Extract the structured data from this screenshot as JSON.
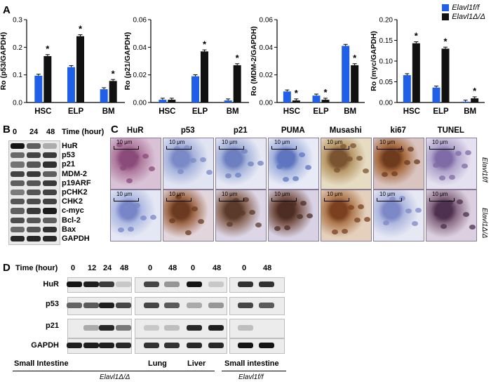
{
  "panels": {
    "A": "A",
    "B": "B",
    "C": "C",
    "D": "D"
  },
  "legend": {
    "items": [
      {
        "label": "Elavl1f/f",
        "color": "#2060e8"
      },
      {
        "label": "Elavl1Δ/Δ",
        "color": "#111111"
      }
    ]
  },
  "chart_data": [
    {
      "type": "bar",
      "ylabel": "Ro (p53/GAPDH)",
      "ylim": [
        0,
        0.3
      ],
      "yticks": [
        "0.0",
        "0.1",
        "0.2",
        "0.3"
      ],
      "categories": [
        "HSC",
        "ELP",
        "BM"
      ],
      "series": [
        {
          "values": [
            0.097,
            0.128,
            0.048
          ]
        },
        {
          "values": [
            0.168,
            0.24,
            0.078
          ]
        }
      ],
      "significance": [
        "*",
        "*",
        "*"
      ]
    },
    {
      "type": "bar",
      "ylabel": "Ro (p21/GAPDH)",
      "ylim": [
        0,
        0.06
      ],
      "yticks": [
        "0.00",
        "0.02",
        "0.04",
        "0.06"
      ],
      "categories": [
        "HSC",
        "ELP",
        "BM"
      ],
      "series": [
        {
          "values": [
            0.002,
            0.019,
            0.0015
          ]
        },
        {
          "values": [
            0.002,
            0.037,
            0.027
          ]
        }
      ],
      "significance": [
        "",
        "*",
        "*"
      ]
    },
    {
      "type": "bar",
      "ylabel": "Ro (MDM-2/GAPDH)",
      "ylim": [
        0,
        0.06
      ],
      "yticks": [
        "0.00",
        "0.02",
        "0.04",
        "0.06"
      ],
      "categories": [
        "HSC",
        "ELP",
        "BM"
      ],
      "series": [
        {
          "values": [
            0.008,
            0.005,
            0.041
          ]
        },
        {
          "values": [
            0.0015,
            0.002,
            0.027
          ]
        }
      ],
      "significance": [
        "*",
        "*",
        "*"
      ]
    },
    {
      "type": "bar",
      "ylabel": "Ro (myc/GAPDH)",
      "ylim": [
        0,
        0.2
      ],
      "yticks": [
        "0.00",
        "0.05",
        "0.10",
        "0.15",
        "0.20"
      ],
      "categories": [
        "HSC",
        "ELP",
        "BM"
      ],
      "series": [
        {
          "values": [
            0.066,
            0.036,
            0.002
          ]
        },
        {
          "values": [
            0.143,
            0.13,
            0.01
          ]
        }
      ],
      "significance": [
        "*",
        "*",
        "*"
      ]
    }
  ],
  "panelB": {
    "time_label": "Time (hour)",
    "times": [
      "0",
      "24",
      "48"
    ],
    "rows": [
      {
        "label": "HuR",
        "intensity": [
          0.95,
          0.55,
          0.15
        ]
      },
      {
        "label": "p53",
        "intensity": [
          0.5,
          0.7,
          0.75
        ]
      },
      {
        "label": "p21",
        "intensity": [
          0.45,
          0.6,
          0.8
        ]
      },
      {
        "label": "MDM-2",
        "intensity": [
          0.7,
          0.75,
          0.55
        ]
      },
      {
        "label": "p19ARF",
        "intensity": [
          0.55,
          0.6,
          0.75
        ]
      },
      {
        "label": "pCHK2",
        "intensity": [
          0.4,
          0.6,
          0.7
        ]
      },
      {
        "label": "CHK2",
        "intensity": [
          0.6,
          0.65,
          0.7
        ]
      },
      {
        "label": "c-myc",
        "intensity": [
          0.55,
          0.75,
          0.9
        ]
      },
      {
        "label": "Bcl-2",
        "intensity": [
          0.65,
          0.6,
          0.55
        ]
      },
      {
        "label": "Bax",
        "intensity": [
          0.5,
          0.6,
          0.8
        ]
      },
      {
        "label": "GAPDH",
        "intensity": [
          0.85,
          0.85,
          0.85
        ]
      }
    ]
  },
  "panelC": {
    "columns": [
      "HuR",
      "p53",
      "p21",
      "PUMA",
      "Musashi",
      "ki67",
      "TUNEL"
    ],
    "scale": "10 μm",
    "row_labels": [
      "Elavl1f/f",
      "Elavl1Δ/Δ"
    ]
  },
  "panelD": {
    "time_label": "Time (hour)",
    "times": [
      "0",
      "12",
      "24",
      "48",
      "0",
      "48",
      "0",
      "48",
      "0",
      "48"
    ],
    "rows": [
      "HuR",
      "p53",
      "p21",
      "GAPDH"
    ],
    "tissues": [
      "Small Intestine",
      "Lung",
      "Liver",
      "Small intestine"
    ],
    "genotypes": [
      "Elavl1Δ/Δ",
      "Elavl1f/f"
    ]
  }
}
